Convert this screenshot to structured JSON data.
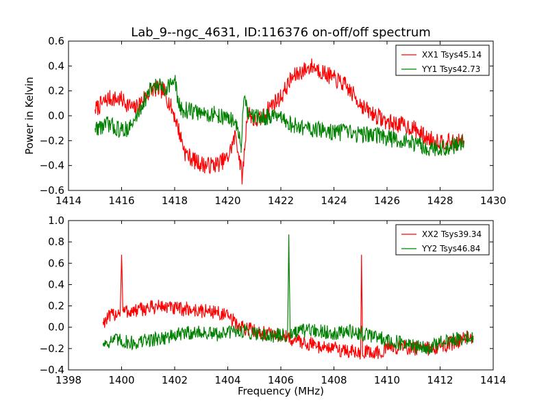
{
  "chart_data": [
    {
      "type": "line",
      "title": "Lab_9--ngc_4631, ID:116376 on-off/off spectrum",
      "xlabel": "",
      "ylabel": "Power in Kelvin",
      "xlim": [
        1414,
        1430
      ],
      "ylim": [
        -0.6,
        0.6
      ],
      "xticks": [
        "1414",
        "1416",
        "1418",
        "1420",
        "1422",
        "1424",
        "1426",
        "1428",
        "1430"
      ],
      "yticks": [
        "−0.6",
        "−0.4",
        "−0.2",
        "0.0",
        "0.2",
        "0.4",
        "0.6"
      ],
      "legend_position": "top-right",
      "series": [
        {
          "name": "XX1 Tsys45.14",
          "color": "#ff0000",
          "x": [
            1415.0,
            1415.5,
            1416.0,
            1416.5,
            1416.9,
            1417.2,
            1417.6,
            1418.0,
            1418.4,
            1418.8,
            1419.2,
            1419.6,
            1420.0,
            1420.3,
            1420.55,
            1420.75,
            1421.0,
            1421.3,
            1421.6,
            1422.0,
            1422.4,
            1422.8,
            1423.2,
            1423.6,
            1424.0,
            1424.4,
            1424.8,
            1425.2,
            1425.6,
            1426.0,
            1426.5,
            1427.0,
            1427.5,
            1428.0,
            1428.5,
            1428.9
          ],
          "y": [
            0.05,
            0.14,
            0.13,
            0.05,
            0.16,
            0.22,
            0.2,
            0.0,
            -0.3,
            -0.37,
            -0.4,
            -0.39,
            -0.34,
            -0.15,
            -0.5,
            0.05,
            -0.05,
            -0.02,
            0.08,
            0.15,
            0.3,
            0.36,
            0.4,
            0.35,
            0.3,
            0.25,
            0.15,
            0.05,
            0.0,
            -0.05,
            -0.07,
            -0.1,
            -0.18,
            -0.2,
            -0.22,
            -0.2
          ]
        },
        {
          "name": "YY1 Tsys42.73",
          "color": "#008000",
          "x": [
            1415.0,
            1415.5,
            1416.0,
            1416.4,
            1416.8,
            1417.2,
            1417.6,
            1418.0,
            1418.2,
            1418.6,
            1419.0,
            1419.5,
            1420.0,
            1420.3,
            1420.5,
            1420.6,
            1420.8,
            1421.2,
            1421.6,
            1422.0,
            1422.5,
            1423.0,
            1423.5,
            1424.0,
            1424.5,
            1425.0,
            1425.5,
            1426.0,
            1426.5,
            1427.0,
            1427.5,
            1428.0,
            1428.5,
            1428.9
          ],
          "y": [
            -0.1,
            -0.07,
            -0.12,
            -0.08,
            0.1,
            0.25,
            0.22,
            0.28,
            0.05,
            0.04,
            0.02,
            0.01,
            -0.02,
            -0.05,
            -0.25,
            0.12,
            0.0,
            -0.02,
            0.0,
            -0.03,
            -0.08,
            -0.1,
            -0.12,
            -0.13,
            -0.14,
            -0.15,
            -0.15,
            -0.18,
            -0.2,
            -0.22,
            -0.25,
            -0.27,
            -0.24,
            -0.2
          ]
        }
      ]
    },
    {
      "type": "line",
      "title": "",
      "xlabel": "Frequency (MHz)",
      "ylabel": "",
      "xlim": [
        1398,
        1414
      ],
      "ylim": [
        -0.4,
        1.0
      ],
      "xticks": [
        "1398",
        "1400",
        "1402",
        "1404",
        "1406",
        "1408",
        "1410",
        "1412",
        "1414"
      ],
      "yticks": [
        "−0.4",
        "−0.2",
        "0.0",
        "0.2",
        "0.4",
        "0.6",
        "0.8",
        "1.0"
      ],
      "legend_position": "top-right",
      "series": [
        {
          "name": "XX2 Tsys39.34",
          "color": "#ff0000",
          "x": [
            1399.3,
            1399.7,
            1399.95,
            1400.0,
            1400.05,
            1400.5,
            1401.0,
            1401.5,
            1402.0,
            1402.5,
            1403.0,
            1403.5,
            1404.0,
            1404.5,
            1405.0,
            1405.5,
            1406.0,
            1406.5,
            1407.0,
            1407.5,
            1408.0,
            1408.5,
            1409.0,
            1409.04,
            1409.08,
            1409.5,
            1410.0,
            1410.5,
            1411.0,
            1411.5,
            1412.0,
            1412.5,
            1413.0,
            1413.25
          ],
          "y": [
            0.05,
            0.12,
            0.15,
            0.68,
            0.15,
            0.15,
            0.18,
            0.2,
            0.17,
            0.17,
            0.15,
            0.15,
            0.1,
            0.0,
            -0.03,
            -0.06,
            -0.08,
            -0.12,
            -0.15,
            -0.18,
            -0.2,
            -0.22,
            -0.25,
            0.68,
            -0.22,
            -0.25,
            -0.2,
            -0.18,
            -0.2,
            -0.2,
            -0.18,
            -0.15,
            -0.1,
            -0.08
          ]
        },
        {
          "name": "YY2 Tsys46.84",
          "color": "#008000",
          "x": [
            1399.3,
            1399.7,
            1400.0,
            1400.5,
            1401.0,
            1401.5,
            1402.0,
            1402.5,
            1403.0,
            1403.5,
            1404.0,
            1404.5,
            1405.0,
            1405.5,
            1406.0,
            1406.25,
            1406.3,
            1406.35,
            1406.5,
            1407.0,
            1407.5,
            1408.0,
            1408.5,
            1409.0,
            1409.5,
            1410.0,
            1410.5,
            1411.0,
            1411.5,
            1412.0,
            1412.5,
            1413.0,
            1413.25
          ],
          "y": [
            -0.15,
            -0.12,
            -0.13,
            -0.15,
            -0.12,
            -0.1,
            -0.08,
            -0.05,
            -0.05,
            -0.07,
            -0.05,
            -0.03,
            -0.05,
            -0.07,
            -0.08,
            -0.08,
            0.87,
            -0.08,
            -0.06,
            -0.03,
            -0.04,
            -0.05,
            -0.04,
            -0.06,
            -0.08,
            -0.12,
            -0.15,
            -0.18,
            -0.2,
            -0.15,
            -0.12,
            -0.1,
            -0.1
          ]
        }
      ]
    }
  ]
}
